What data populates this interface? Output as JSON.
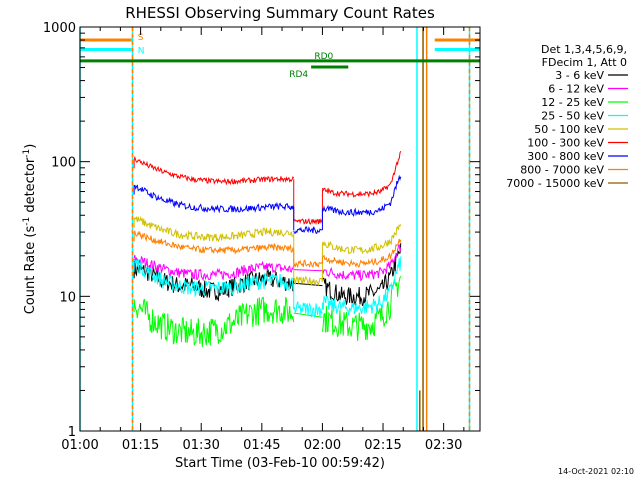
{
  "chart_data": {
    "type": "line",
    "title": "RHESSI Observing Summary Count Rates",
    "xlabel": "Start Time (03-Feb-10 00:59:42)",
    "ylabel_main": "Count Rate (s",
    "ylabel_sup1": "-1",
    "ylabel_mid": " detector",
    "ylabel_sup2": "-1",
    "ylabel_end": ")",
    "x_range_minutes": [
      0.3,
      99.3
    ],
    "y_range": [
      1,
      1000
    ],
    "y_scale": "log",
    "x_ticks": [
      {
        "m": 0.3,
        "label": "01:00"
      },
      {
        "m": 15.3,
        "label": "01:15"
      },
      {
        "m": 30.3,
        "label": "01:30"
      },
      {
        "m": 45.3,
        "label": "01:45"
      },
      {
        "m": 60.3,
        "label": "02:00"
      },
      {
        "m": 75.3,
        "label": "02:15"
      },
      {
        "m": 90.3,
        "label": "02:30"
      }
    ],
    "y_ticks": [
      {
        "v": 1,
        "label": "1"
      },
      {
        "v": 10,
        "label": "10"
      },
      {
        "v": 100,
        "label": "100"
      },
      {
        "v": 1000,
        "label": "1000"
      }
    ],
    "legend_header": [
      "Det 1,3,4,5,6,9,",
      "FDecim 1, Att 0"
    ],
    "legend_position": "right",
    "series": [
      {
        "name": "3 - 6 keV",
        "color": "#000000",
        "seg1": [
          16,
          15,
          13,
          12,
          12,
          11,
          11,
          12,
          13,
          13.5,
          13,
          12.5
        ],
        "seg2": [
          12,
          11,
          10,
          10,
          10,
          10.5,
          11,
          14,
          22
        ]
      },
      {
        "name": "6 - 12 keV",
        "color": "#ff00ff",
        "seg1": [
          19,
          17.5,
          16,
          15,
          14.5,
          14.5,
          14.5,
          15,
          16,
          16.5,
          16.2,
          15.8
        ],
        "seg2": [
          15.5,
          15,
          14.5,
          14.3,
          14.3,
          14.5,
          15,
          17,
          24
        ]
      },
      {
        "name": "12 - 25 keV",
        "color": "#00ff00",
        "seg1": [
          9,
          7,
          6,
          5.5,
          5.3,
          5.4,
          5.8,
          6.5,
          7.5,
          8,
          8,
          7.5
        ],
        "seg2": [
          7,
          6.5,
          6.2,
          6,
          6,
          6.2,
          7,
          9,
          14
        ]
      },
      {
        "name": "25 - 50 keV",
        "color": "#00ffff",
        "seg1": [
          18,
          15,
          13,
          12,
          11.5,
          11.5,
          11.5,
          11.8,
          12.5,
          13,
          13,
          12.5
        ],
        "seg2": [
          9,
          8.5,
          8.3,
          8.2,
          8.2,
          8.5,
          9,
          11,
          18
        ]
      },
      {
        "name": "50 - 100 keV",
        "color": "#d0c000",
        "seg1": [
          38,
          34,
          31,
          29,
          28,
          27.5,
          27.5,
          28,
          29,
          30,
          30,
          29.5
        ],
        "seg2": [
          25,
          23.5,
          22.5,
          22,
          22,
          22.5,
          23.5,
          26,
          34
        ]
      },
      {
        "name": "100 - 300 keV",
        "color": "#ff0000",
        "seg1": [
          105,
          93,
          84,
          78,
          74,
          72,
          71,
          71.5,
          72.5,
          74,
          74.5,
          74
        ],
        "seg2": [
          62,
          59,
          58,
          57.5,
          57.5,
          58,
          60,
          68,
          115
        ]
      },
      {
        "name": "300 - 800 keV",
        "color": "#0000ff",
        "seg1": [
          67,
          58,
          52,
          48,
          46,
          45,
          44.5,
          44.5,
          45,
          46,
          46.5,
          46
        ],
        "seg2": [
          45,
          43.5,
          42.5,
          42,
          42,
          42.5,
          44,
          50,
          80
        ]
      },
      {
        "name": "800 - 7000 keV",
        "color": "#ff8000",
        "seg1": [
          30,
          27,
          25,
          23.5,
          22.5,
          22,
          22,
          22,
          22.5,
          23,
          23,
          22.5
        ],
        "seg2": [
          19.5,
          18.5,
          18,
          17.5,
          17.5,
          17.8,
          18.5,
          20,
          27
        ]
      },
      {
        "name": "7000 - 15000 keV",
        "color": "#8b5a00",
        "seg1": [],
        "seg2": []
      }
    ],
    "dip_values": {
      "ff0000": 36,
      "0000ff": 31,
      "ff8000": 17.5,
      "d0c000": 13,
      "00ffff": 8
    },
    "segment_x_minutes": {
      "seg1_start": 13.7,
      "seg1_end": 53.2,
      "gap_start": 53.2,
      "gap_end": 60.3,
      "seg2_start": 60.3,
      "seg2_end": 79.7
    },
    "flag_bars": [
      {
        "label": "S",
        "color": "#ff8000",
        "y_value": 800,
        "ranges_min": [
          [
            0.3,
            13.1
          ],
          [
            88.1,
            99.3
          ]
        ]
      },
      {
        "label": "N",
        "color": "#00ffff",
        "y_value": 680,
        "ranges_min": [
          [
            0.3,
            13.1
          ],
          [
            88.1,
            99.3
          ]
        ]
      },
      {
        "label": "RD0",
        "color": "#008000",
        "y_value": 560,
        "ranges_min": [
          [
            0.3,
            99.3
          ]
        ]
      },
      {
        "label": "RD4",
        "color": "#008000",
        "y_value": 505,
        "ranges_min": [
          [
            57.5,
            66.7
          ]
        ]
      }
    ],
    "vertical_lines": [
      {
        "m": 0.3,
        "color": "#00ffff",
        "style": "solid"
      },
      {
        "m": 13.3,
        "color": "#00ffff",
        "style": "solid"
      },
      {
        "m": 13.3,
        "color": "#ff8000",
        "style": "dashed"
      },
      {
        "m": 83.7,
        "color": "#00ffff",
        "style": "solid"
      },
      {
        "m": 86.1,
        "color": "#ff8000",
        "style": "solid"
      },
      {
        "m": 85.2,
        "color": "#8b5a00",
        "style": "solid"
      },
      {
        "m": 96.7,
        "color": "#00ffff",
        "style": "solid"
      },
      {
        "m": 96.7,
        "color": "#ff8000",
        "style": "dashed"
      }
    ],
    "footer_date": "14-Oct-2021 02:10"
  }
}
